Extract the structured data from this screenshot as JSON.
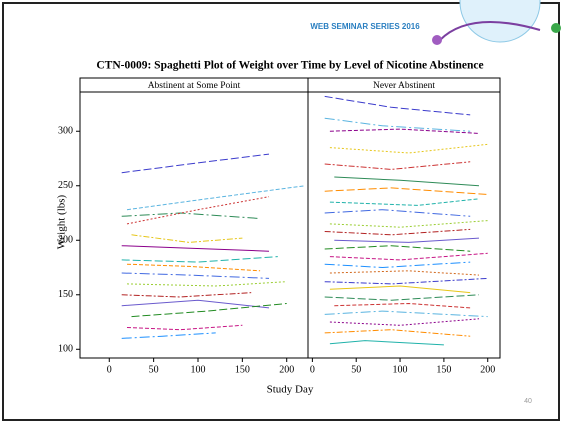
{
  "slide": {
    "header": "WEB SEMINAR SERIES 2016",
    "page_number": "40"
  },
  "chart_data": {
    "type": "line",
    "title": "CTN-0009: Spaghetti Plot of Weight over Time by Level of Nicotine Abstinence",
    "x_label": "Study Day",
    "y_label": "Weight (lbs)",
    "ylim": [
      92,
      336
    ],
    "yticks": [
      100,
      150,
      200,
      250,
      300
    ],
    "panels": [
      {
        "title": "Abstinent at Some Point",
        "xlim": [
          -33,
          224
        ],
        "xticks": [
          0,
          50,
          100,
          150,
          200
        ],
        "series": [
          {
            "color": "#3b3bcc",
            "x": [
              14,
              90,
              180
            ],
            "values": [
              262,
              270,
              279
            ]
          },
          {
            "color": "#5ab4e0",
            "x": [
              20,
              110,
              220
            ],
            "values": [
              228,
              238,
              250
            ]
          },
          {
            "color": "#2e8b57",
            "x": [
              14,
              80,
              170
            ],
            "values": [
              222,
              225,
              220
            ]
          },
          {
            "color": "#cc3333",
            "x": [
              20,
              100,
              180
            ],
            "values": [
              215,
              228,
              240
            ]
          },
          {
            "color": "#e6c619",
            "x": [
              25,
              90,
              150
            ],
            "values": [
              205,
              198,
              202
            ]
          },
          {
            "color": "#8b008b",
            "x": [
              14,
              80,
              180
            ],
            "values": [
              195,
              193,
              190
            ]
          },
          {
            "color": "#20b2aa",
            "x": [
              14,
              100,
              190
            ],
            "values": [
              182,
              180,
              185
            ]
          },
          {
            "color": "#ff8c00",
            "x": [
              20,
              90,
              170
            ],
            "values": [
              178,
              176,
              172
            ]
          },
          {
            "color": "#4169e1",
            "x": [
              14,
              90,
              180
            ],
            "values": [
              170,
              168,
              165
            ]
          },
          {
            "color": "#9acd32",
            "x": [
              20,
              120,
              200
            ],
            "values": [
              160,
              158,
              162
            ]
          },
          {
            "color": "#b22222",
            "x": [
              14,
              80,
              160
            ],
            "values": [
              150,
              148,
              152
            ]
          },
          {
            "color": "#6a5acd",
            "x": [
              14,
              100,
              180
            ],
            "values": [
              140,
              145,
              138
            ]
          },
          {
            "color": "#228b22",
            "x": [
              25,
              110,
              200
            ],
            "values": [
              130,
              135,
              142
            ]
          },
          {
            "color": "#c71585",
            "x": [
              20,
              80,
              150
            ],
            "values": [
              120,
              118,
              122
            ]
          },
          {
            "color": "#1e90ff",
            "x": [
              14,
              60,
              120
            ],
            "values": [
              110,
              112,
              115
            ]
          }
        ]
      },
      {
        "title": "Never Abstinent",
        "xlim": [
          -5,
          214
        ],
        "xticks": [
          0,
          50,
          100,
          150,
          200
        ],
        "series": [
          {
            "color": "#3b3bcc",
            "x": [
              14,
              90,
              180
            ],
            "values": [
              332,
              322,
              315
            ]
          },
          {
            "color": "#8b008b",
            "x": [
              20,
              100,
              190
            ],
            "values": [
              300,
              302,
              298
            ]
          },
          {
            "color": "#5ab4e0",
            "x": [
              14,
              80,
              180
            ],
            "values": [
              312,
              305,
              300
            ]
          },
          {
            "color": "#e6c619",
            "x": [
              20,
              110,
              200
            ],
            "values": [
              285,
              280,
              288
            ]
          },
          {
            "color": "#cc3333",
            "x": [
              14,
              90,
              180
            ],
            "values": [
              270,
              265,
              272
            ]
          },
          {
            "color": "#2e8b57",
            "x": [
              25,
              100,
              190
            ],
            "values": [
              258,
              255,
              250
            ]
          },
          {
            "color": "#ff8c00",
            "x": [
              14,
              90,
              200
            ],
            "values": [
              245,
              248,
              242
            ]
          },
          {
            "color": "#20b2aa",
            "x": [
              20,
              120,
              190
            ],
            "values": [
              235,
              232,
              238
            ]
          },
          {
            "color": "#4169e1",
            "x": [
              14,
              80,
              180
            ],
            "values": [
              225,
              228,
              222
            ]
          },
          {
            "color": "#9acd32",
            "x": [
              20,
              100,
              200
            ],
            "values": [
              215,
              212,
              218
            ]
          },
          {
            "color": "#b22222",
            "x": [
              14,
              90,
              180
            ],
            "values": [
              208,
              205,
              210
            ]
          },
          {
            "color": "#6a5acd",
            "x": [
              25,
              110,
              190
            ],
            "values": [
              200,
              198,
              202
            ]
          },
          {
            "color": "#228b22",
            "x": [
              14,
              90,
              180
            ],
            "values": [
              192,
              195,
              190
            ]
          },
          {
            "color": "#c71585",
            "x": [
              20,
              100,
              200
            ],
            "values": [
              185,
              182,
              188
            ]
          },
          {
            "color": "#1e90ff",
            "x": [
              14,
              80,
              180
            ],
            "values": [
              178,
              175,
              180
            ]
          },
          {
            "color": "#d2691e",
            "x": [
              20,
              110,
              190
            ],
            "values": [
              170,
              172,
              168
            ]
          },
          {
            "color": "#3b3bcc",
            "x": [
              14,
              90,
              200
            ],
            "values": [
              162,
              160,
              165
            ]
          },
          {
            "color": "#e6c619",
            "x": [
              20,
              100,
              180
            ],
            "values": [
              155,
              158,
              152
            ]
          },
          {
            "color": "#2e8b57",
            "x": [
              14,
              90,
              190
            ],
            "values": [
              148,
              145,
              150
            ]
          },
          {
            "color": "#cc3333",
            "x": [
              25,
              110,
              180
            ],
            "values": [
              140,
              142,
              138
            ]
          },
          {
            "color": "#5ab4e0",
            "x": [
              14,
              80,
              200
            ],
            "values": [
              132,
              135,
              130
            ]
          },
          {
            "color": "#8b008b",
            "x": [
              20,
              100,
              190
            ],
            "values": [
              125,
              122,
              128
            ]
          },
          {
            "color": "#ff8c00",
            "x": [
              14,
              90,
              180
            ],
            "values": [
              115,
              118,
              112
            ]
          },
          {
            "color": "#20b2aa",
            "x": [
              20,
              60,
              150
            ],
            "values": [
              105,
              108,
              104
            ]
          }
        ]
      }
    ]
  }
}
